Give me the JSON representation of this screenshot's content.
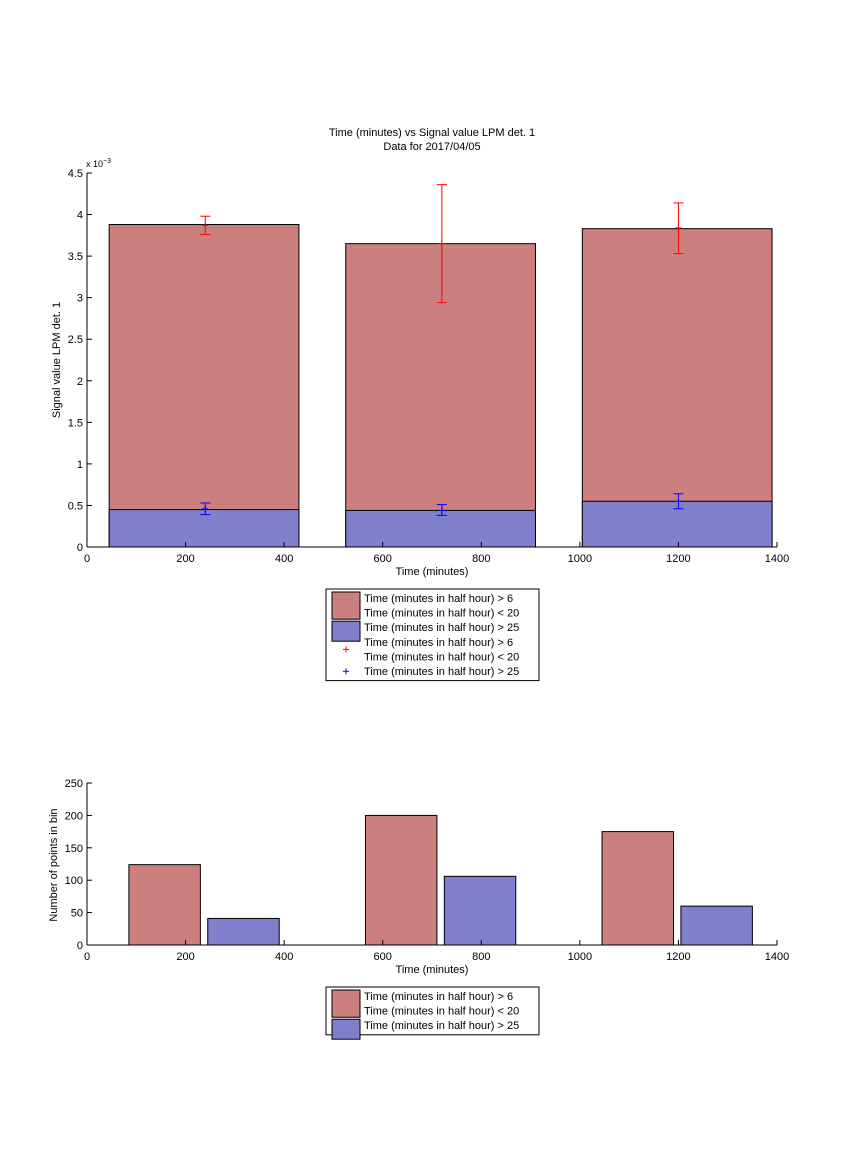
{
  "chart_data": [
    {
      "type": "bar",
      "title": "Time (minutes) vs Signal value LPM det. 1",
      "subtitle": "Data for 2017/04/05",
      "xlabel": "Time (minutes)",
      "ylabel": "Signal value LPM det. 1",
      "y_exponent": "x 10",
      "y_exponent_power": "−3",
      "xlim": [
        0,
        1400
      ],
      "ylim": [
        0,
        4.5
      ],
      "xticks": [
        0,
        200,
        400,
        600,
        800,
        1000,
        1200,
        1400
      ],
      "yticks": [
        0,
        0.5,
        1,
        1.5,
        2,
        2.5,
        3,
        3.5,
        4,
        4.5
      ],
      "grid": false,
      "legend_position": "below",
      "series": [
        {
          "name": "Time (minutes in half hour) > 6\nTime (minutes in half hour) < 20",
          "color": "#cc7f7f",
          "bars": [
            {
              "x_start": 45,
              "x_end": 430,
              "value": 3.88
            },
            {
              "x_start": 525,
              "x_end": 910,
              "value": 3.65
            },
            {
              "x_start": 1005,
              "x_end": 1390,
              "value": 3.83
            }
          ]
        },
        {
          "name": "Time (minutes in half hour) > 25",
          "color": "#7f7fcc",
          "bars": [
            {
              "x_start": 45,
              "x_end": 430,
              "value": 0.45
            },
            {
              "x_start": 525,
              "x_end": 910,
              "value": 0.44
            },
            {
              "x_start": 1005,
              "x_end": 1390,
              "value": 0.55
            }
          ]
        }
      ],
      "errorbars": [
        {
          "name": "Time (minutes in half hour) > 6\nTime (minutes in half hour) < 20",
          "color": "#ff0000",
          "points": [
            {
              "x": 240,
              "y": 3.87,
              "low": 3.76,
              "high": 3.98
            },
            {
              "x": 720,
              "y": 3.65,
              "low": 2.94,
              "high": 4.36
            },
            {
              "x": 1200,
              "y": 3.84,
              "low": 3.53,
              "high": 4.14
            }
          ]
        },
        {
          "name": "Time (minutes in half hour) > 25",
          "color": "#0000ff",
          "points": [
            {
              "x": 240,
              "y": 0.46,
              "low": 0.39,
              "high": 0.53
            },
            {
              "x": 720,
              "y": 0.44,
              "low": 0.38,
              "high": 0.51
            },
            {
              "x": 1200,
              "y": 0.55,
              "low": 0.46,
              "high": 0.64
            }
          ]
        }
      ],
      "legend": [
        {
          "kind": "patch",
          "color": "#cc7f7f",
          "label1": "Time (minutes in half hour) > 6",
          "label2": "Time (minutes in half hour) < 20"
        },
        {
          "kind": "patch",
          "color": "#7f7fcc",
          "label1": "Time (minutes in half hour) > 25"
        },
        {
          "kind": "marker",
          "color": "#ff0000",
          "label1": "Time (minutes in half hour) > 6",
          "label2": "Time (minutes in half hour) < 20"
        },
        {
          "kind": "marker",
          "color": "#0000ff",
          "label1": "Time (minutes in half hour) > 25"
        }
      ]
    },
    {
      "type": "bar",
      "xlabel": "Time (minutes)",
      "ylabel": "Number of points in bin",
      "xlim": [
        0,
        1400
      ],
      "ylim": [
        0,
        250
      ],
      "xticks": [
        0,
        200,
        400,
        600,
        800,
        1000,
        1200,
        1400
      ],
      "yticks": [
        0,
        50,
        100,
        150,
        200,
        250
      ],
      "grid": false,
      "legend_position": "below",
      "series": [
        {
          "name": "Time (minutes in half hour) > 6\nTime (minutes in half hour) < 20",
          "color": "#cc7f7f",
          "bars": [
            {
              "x_start": 85,
              "x_end": 230,
              "value": 124
            },
            {
              "x_start": 565,
              "x_end": 710,
              "value": 200
            },
            {
              "x_start": 1045,
              "x_end": 1190,
              "value": 175
            }
          ]
        },
        {
          "name": "Time (minutes in half hour) > 25",
          "color": "#7f7fcc",
          "bars": [
            {
              "x_start": 245,
              "x_end": 390,
              "value": 41
            },
            {
              "x_start": 725,
              "x_end": 870,
              "value": 106
            },
            {
              "x_start": 1205,
              "x_end": 1350,
              "value": 60
            }
          ]
        }
      ],
      "legend": [
        {
          "kind": "patch",
          "color": "#cc7f7f",
          "label1": "Time (minutes in half hour) > 6",
          "label2": "Time (minutes in half hour) < 20"
        },
        {
          "kind": "patch",
          "color": "#7f7fcc",
          "label1": "Time (minutes in half hour) > 25"
        }
      ]
    }
  ]
}
